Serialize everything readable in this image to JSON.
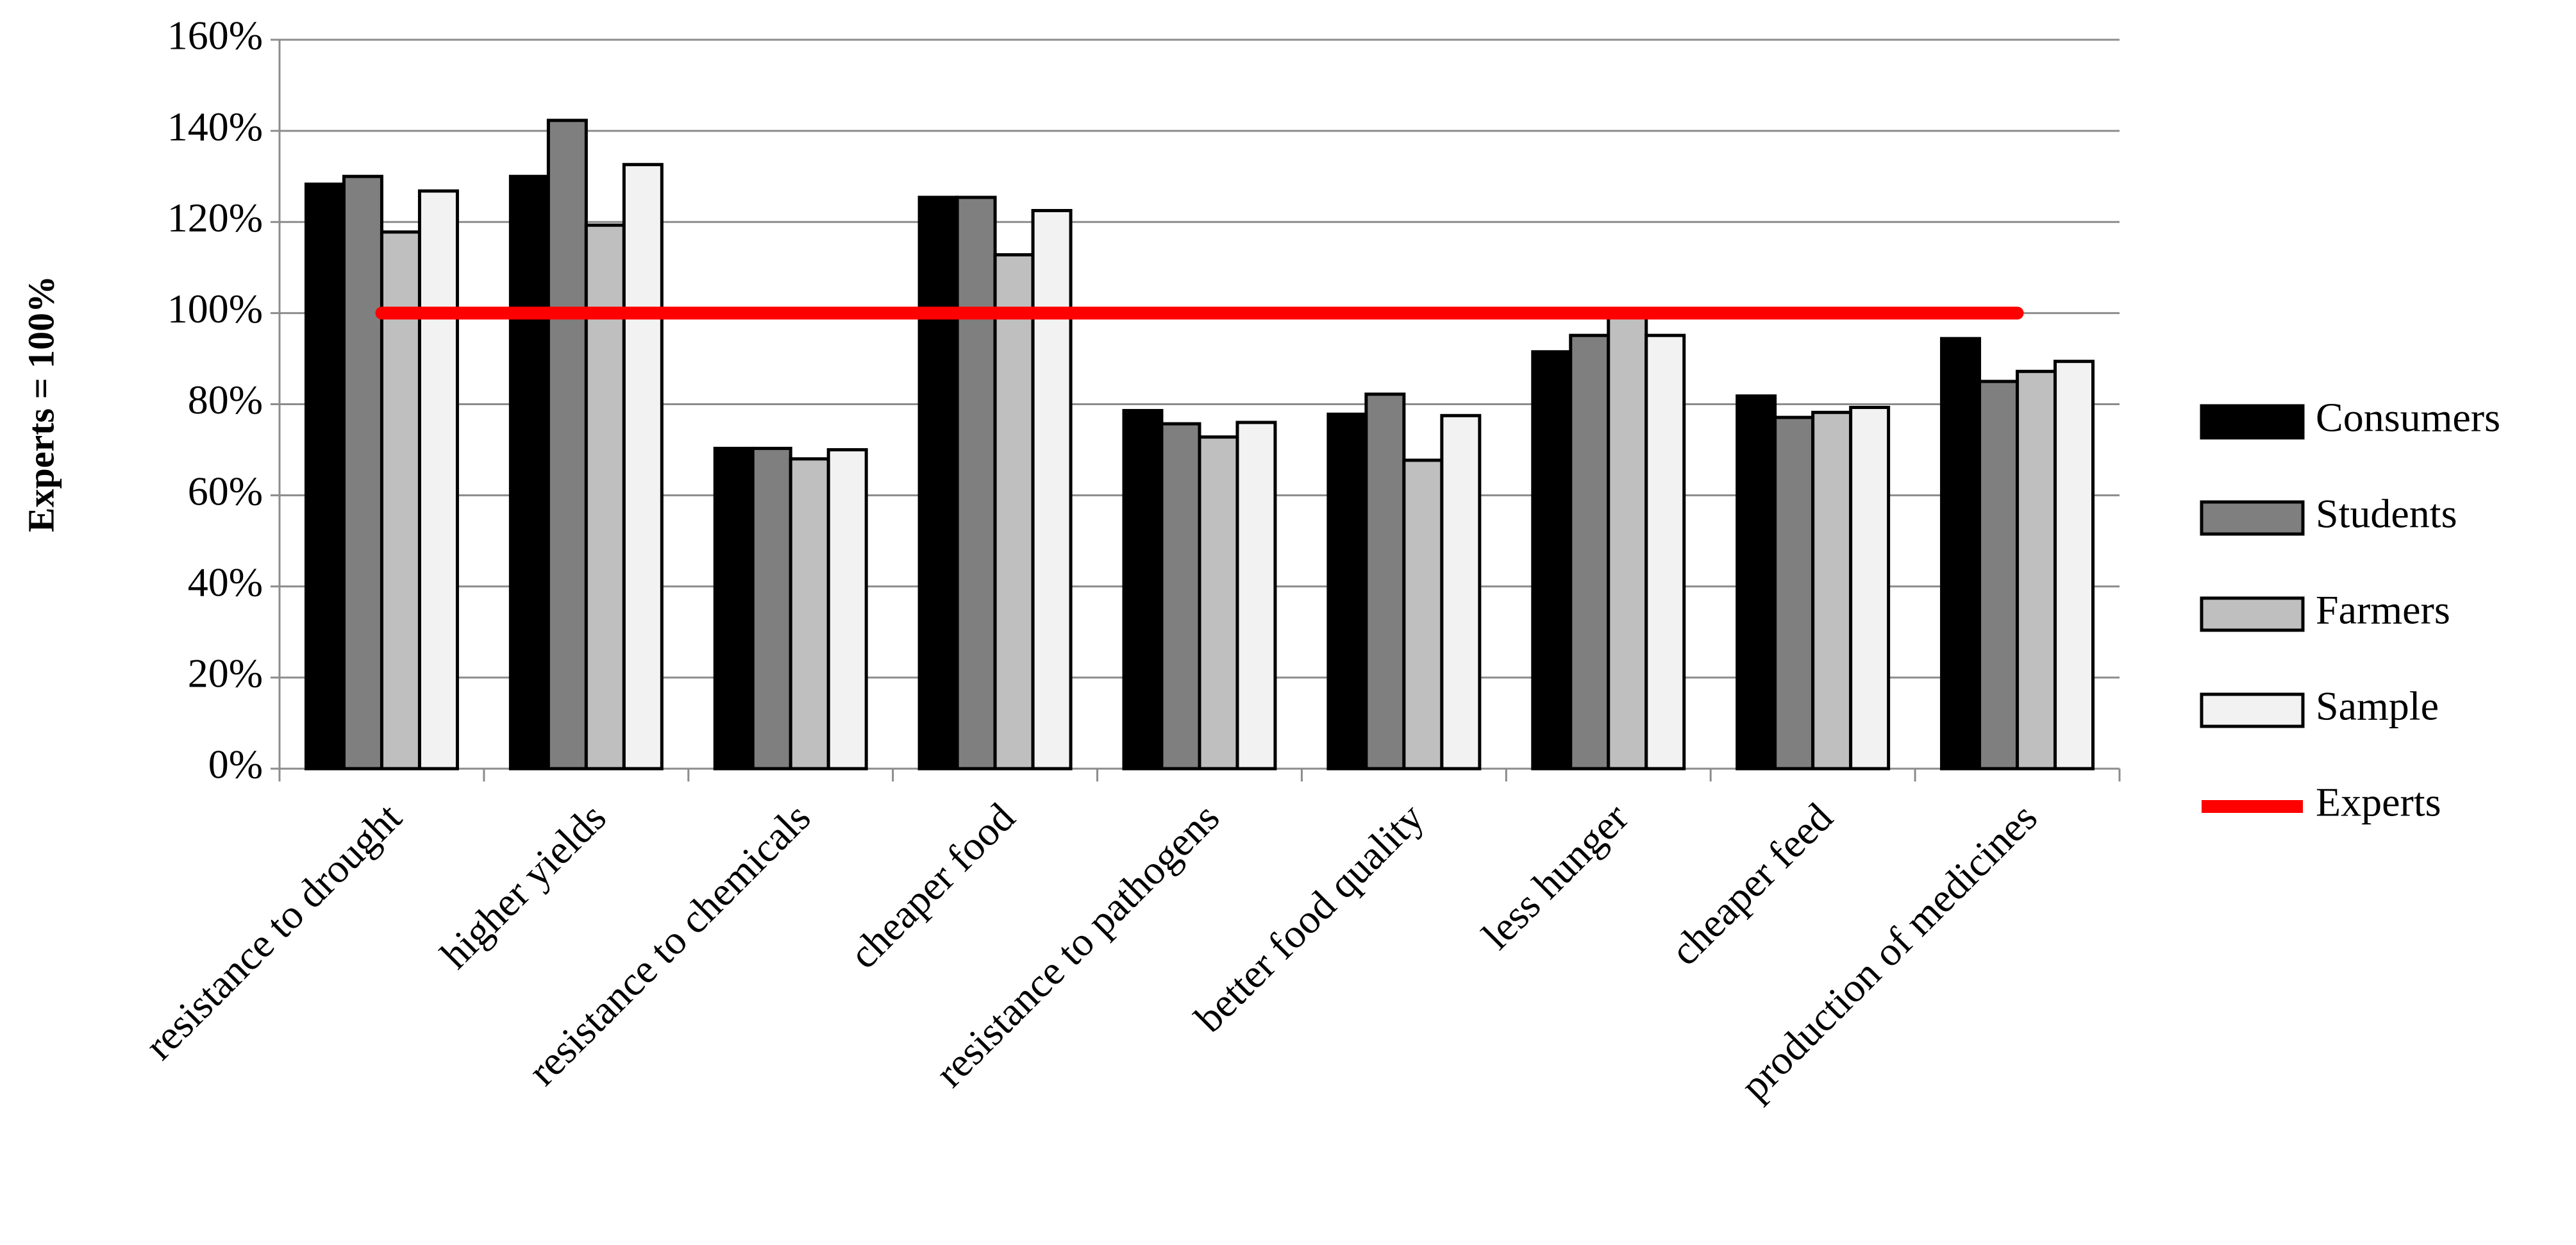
{
  "chart_data": {
    "type": "bar",
    "ylabel": "Experts = 100%",
    "categories": [
      "resistance to drought",
      "higher yields",
      "resistance to chemicals",
      "cheaper food",
      "resistance to pathogens",
      "better food quality",
      "less hunger",
      "cheaper feed",
      "production of medicines"
    ],
    "series": [
      {
        "name": "Consumers",
        "color": "#000000",
        "values": [
          128.3,
          130,
          70.3,
          125.4,
          78.6,
          77.8,
          91.5,
          81.8,
          94.4
        ]
      },
      {
        "name": "Students",
        "color": "#7f7f7f",
        "values": [
          130,
          142.3,
          70.3,
          125.4,
          75.7,
          82.2,
          95.1,
          77.1,
          85
        ]
      },
      {
        "name": "Farmers",
        "color": "#bfbfbf",
        "values": [
          117.8,
          119.3,
          68,
          112.8,
          72.8,
          67.7,
          100.9,
          78.2,
          87.2
        ]
      },
      {
        "name": "Sample",
        "color": "#f2f2f2",
        "values": [
          126.8,
          132.6,
          70,
          122.5,
          76,
          77.5,
          95.1,
          79.3,
          89.4
        ]
      },
      {
        "name": "Experts",
        "color": "#ff0000",
        "type": "line",
        "values": [
          100,
          100,
          100,
          100,
          100,
          100,
          100,
          100,
          100
        ]
      }
    ],
    "ylim": [
      0,
      160
    ],
    "yticks": [
      {
        "value": 0,
        "label": "0%"
      },
      {
        "value": 20,
        "label": "20%"
      },
      {
        "value": 40,
        "label": "40%"
      },
      {
        "value": 60,
        "label": "60%"
      },
      {
        "value": 80,
        "label": "80%"
      },
      {
        "value": 100,
        "label": "100%"
      },
      {
        "value": 120,
        "label": "120%"
      },
      {
        "value": 140,
        "label": "140%"
      },
      {
        "value": 160,
        "label": "160%"
      }
    ],
    "grid": true,
    "legend": "right"
  }
}
